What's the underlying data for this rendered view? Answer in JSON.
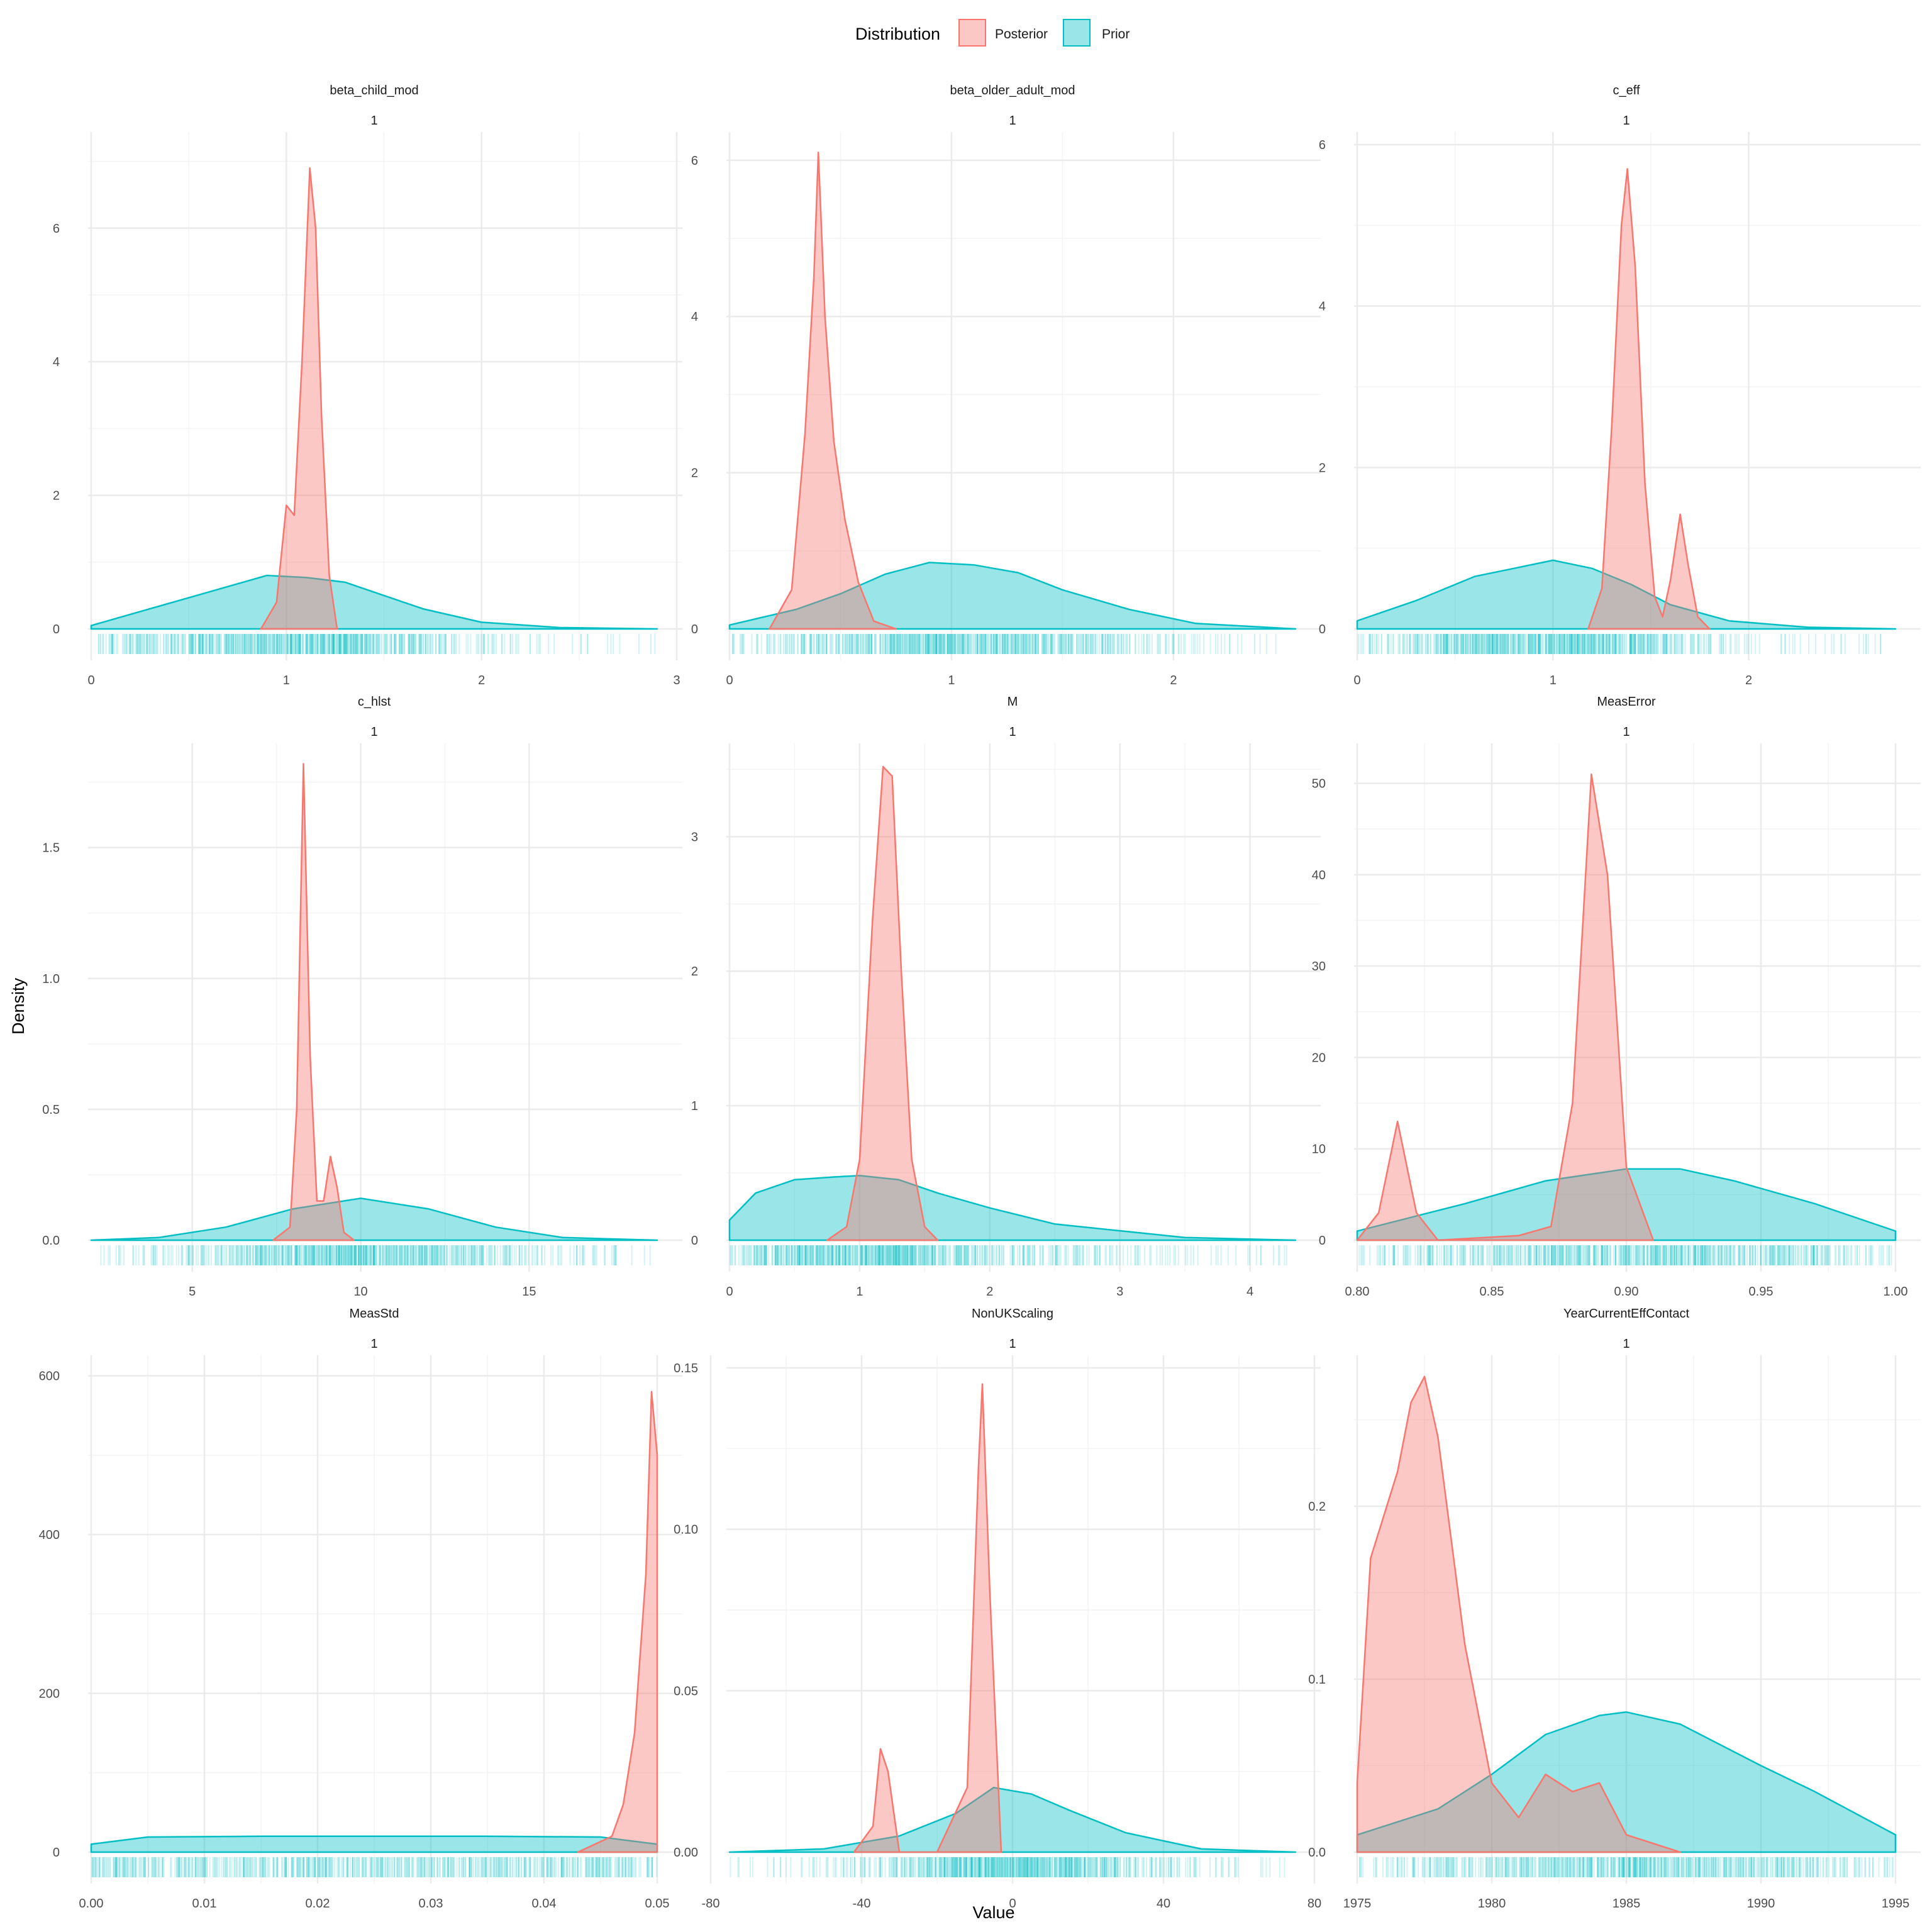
{
  "legend": {
    "title": "Distribution",
    "items": [
      {
        "label": "Posterior",
        "fill": "#F8766D",
        "stroke": "#F8766D"
      },
      {
        "label": "Prior",
        "fill": "#00BFC4",
        "stroke": "#00BFC4"
      }
    ]
  },
  "axis_titles": {
    "x": "Value",
    "y": "Density"
  },
  "colors": {
    "posterior": "#F8766D",
    "prior": "#00BFC4",
    "grid_major": "#ebebeb",
    "grid_minor": "#f4f4f4",
    "text": "#4d4d4d"
  },
  "chart_data": [
    {
      "type": "area",
      "title": "beta_child_mod",
      "subtitle": "1",
      "xlim": [
        0,
        2.9
      ],
      "ylim": [
        0,
        7.25
      ],
      "xticks": [
        0,
        1,
        2,
        3
      ],
      "yticks": [
        0,
        2,
        4,
        6
      ],
      "xtick_labels": [
        "0",
        "1",
        "2",
        "3"
      ],
      "ytick_labels": [
        "0",
        "2",
        "4",
        "6"
      ],
      "series": [
        {
          "name": "Prior",
          "x": [
            0,
            0.3,
            0.6,
            0.9,
            1.1,
            1.3,
            1.5,
            1.7,
            2.0,
            2.4,
            2.9
          ],
          "y": [
            0.05,
            0.3,
            0.55,
            0.8,
            0.77,
            0.7,
            0.5,
            0.3,
            0.1,
            0.02,
            0
          ]
        },
        {
          "name": "Posterior",
          "x": [
            0.87,
            0.95,
            1.0,
            1.04,
            1.08,
            1.12,
            1.15,
            1.18,
            1.22,
            1.26
          ],
          "y": [
            0,
            0.4,
            1.85,
            1.7,
            4.0,
            6.9,
            6.0,
            3.2,
            0.8,
            0
          ]
        }
      ]
    },
    {
      "type": "area",
      "title": "beta_older_adult_mod",
      "subtitle": "1",
      "xlim": [
        0,
        2.55
      ],
      "ylim": [
        0,
        6.2
      ],
      "xticks": [
        0,
        1,
        2
      ],
      "yticks": [
        0,
        2,
        4,
        6
      ],
      "xtick_labels": [
        "0",
        "1",
        "2"
      ],
      "ytick_labels": [
        "0",
        "2",
        "4",
        "6"
      ],
      "series": [
        {
          "name": "Prior",
          "x": [
            0,
            0.3,
            0.5,
            0.7,
            0.9,
            1.1,
            1.3,
            1.5,
            1.8,
            2.1,
            2.55
          ],
          "y": [
            0.05,
            0.25,
            0.45,
            0.7,
            0.85,
            0.82,
            0.72,
            0.5,
            0.25,
            0.07,
            0
          ]
        },
        {
          "name": "Posterior",
          "x": [
            0.18,
            0.28,
            0.34,
            0.38,
            0.4,
            0.43,
            0.47,
            0.52,
            0.58,
            0.65,
            0.75
          ],
          "y": [
            0,
            0.5,
            2.5,
            4.5,
            6.1,
            4.0,
            2.4,
            1.4,
            0.6,
            0.1,
            0
          ]
        }
      ]
    },
    {
      "type": "area",
      "title": "c_eff",
      "subtitle": "1",
      "xlim": [
        0,
        2.75
      ],
      "ylim": [
        0,
        6
      ],
      "xticks": [
        0,
        1,
        2
      ],
      "yticks": [
        0,
        2,
        4,
        6
      ],
      "xtick_labels": [
        "0",
        "1",
        "2"
      ],
      "ytick_labels": [
        "0",
        "2",
        "4",
        "6"
      ],
      "series": [
        {
          "name": "Prior",
          "x": [
            0,
            0.3,
            0.6,
            0.8,
            1.0,
            1.2,
            1.4,
            1.6,
            1.9,
            2.3,
            2.75
          ],
          "y": [
            0.1,
            0.35,
            0.65,
            0.75,
            0.85,
            0.75,
            0.55,
            0.3,
            0.1,
            0.02,
            0
          ]
        },
        {
          "name": "Posterior",
          "x": [
            1.18,
            1.25,
            1.3,
            1.35,
            1.38,
            1.42,
            1.47,
            1.52,
            1.56,
            1.6,
            1.65,
            1.69,
            1.74,
            1.8
          ],
          "y": [
            0,
            0.5,
            2.5,
            5.0,
            5.7,
            4.5,
            1.8,
            0.4,
            0.15,
            0.6,
            1.42,
            0.8,
            0.15,
            0
          ]
        }
      ]
    },
    {
      "type": "area",
      "title": "c_hlst",
      "subtitle": "1",
      "xlim": [
        2,
        18.8
      ],
      "ylim": [
        0,
        1.85
      ],
      "xticks": [
        5,
        10,
        15
      ],
      "yticks": [
        0,
        0.5,
        1,
        1.5
      ],
      "xtick_labels": [
        "5",
        "10",
        "15"
      ],
      "ytick_labels": [
        "0.0",
        "0.5",
        "1.0",
        "1.5"
      ],
      "series": [
        {
          "name": "Prior",
          "x": [
            2,
            4,
            6,
            8,
            10,
            12,
            14,
            16,
            18.8
          ],
          "y": [
            0,
            0.01,
            0.05,
            0.12,
            0.16,
            0.12,
            0.05,
            0.01,
            0
          ]
        },
        {
          "name": "Posterior",
          "x": [
            7.4,
            7.9,
            8.1,
            8.3,
            8.5,
            8.7,
            8.9,
            9.1,
            9.3,
            9.5,
            9.8
          ],
          "y": [
            0,
            0.05,
            0.5,
            1.82,
            0.7,
            0.15,
            0.15,
            0.32,
            0.2,
            0.03,
            0
          ]
        }
      ]
    },
    {
      "type": "area",
      "title": "M",
      "subtitle": "1",
      "xlim": [
        0,
        4.35
      ],
      "ylim": [
        0,
        3.6
      ],
      "xticks": [
        0,
        1,
        2,
        3,
        4
      ],
      "yticks": [
        0,
        1,
        2,
        3
      ],
      "xtick_labels": [
        "0",
        "1",
        "2",
        "3",
        "4"
      ],
      "ytick_labels": [
        "0",
        "1",
        "2",
        "3"
      ],
      "series": [
        {
          "name": "Prior",
          "x": [
            0,
            0.2,
            0.5,
            0.8,
            1.0,
            1.3,
            1.6,
            2.0,
            2.5,
            3.0,
            3.5,
            4.35
          ],
          "y": [
            0.15,
            0.35,
            0.45,
            0.47,
            0.48,
            0.45,
            0.35,
            0.24,
            0.12,
            0.07,
            0.02,
            0
          ]
        },
        {
          "name": "Posterior",
          "x": [
            0.75,
            0.9,
            1.0,
            1.1,
            1.18,
            1.25,
            1.32,
            1.4,
            1.5,
            1.6
          ],
          "y": [
            0,
            0.1,
            0.6,
            2.4,
            3.52,
            3.45,
            2.0,
            0.6,
            0.1,
            0
          ]
        }
      ]
    },
    {
      "type": "area",
      "title": "MeasError",
      "subtitle": "1",
      "xlim": [
        0.8,
        1.0
      ],
      "ylim": [
        0,
        53
      ],
      "xticks": [
        0.8,
        0.85,
        0.9,
        0.95,
        1.0
      ],
      "yticks": [
        0,
        10,
        20,
        30,
        40,
        50
      ],
      "xtick_labels": [
        "0.80",
        "0.85",
        "0.90",
        "0.95",
        "1.00"
      ],
      "ytick_labels": [
        "0",
        "10",
        "20",
        "30",
        "40",
        "50"
      ],
      "series": [
        {
          "name": "Prior",
          "x": [
            0.8,
            0.84,
            0.87,
            0.9,
            0.92,
            0.94,
            0.97,
            1.0
          ],
          "y": [
            1,
            4,
            6.5,
            7.8,
            7.8,
            6.5,
            4,
            1
          ]
        },
        {
          "name": "Posterior",
          "x": [
            0.8,
            0.808,
            0.815,
            0.822,
            0.83,
            0.86,
            0.872,
            0.88,
            0.887,
            0.893,
            0.9,
            0.91
          ],
          "y": [
            0,
            3,
            13,
            3,
            0,
            0.5,
            1.5,
            15,
            51,
            40,
            8,
            0
          ]
        }
      ]
    },
    {
      "type": "area",
      "title": "MeasStd",
      "subtitle": "1",
      "xlim": [
        0,
        0.05
      ],
      "ylim": [
        0,
        610
      ],
      "xticks": [
        0,
        0.01,
        0.02,
        0.03,
        0.04,
        0.05
      ],
      "yticks": [
        0,
        200,
        400,
        600
      ],
      "xtick_labels": [
        "0.00",
        "0.01",
        "0.02",
        "0.03",
        "0.04",
        "0.05"
      ],
      "ytick_labels": [
        "0",
        "200",
        "400",
        "600"
      ],
      "series": [
        {
          "name": "Prior",
          "x": [
            0,
            0.005,
            0.015,
            0.025,
            0.035,
            0.045,
            0.05
          ],
          "y": [
            10,
            19,
            20,
            20,
            20,
            19,
            10
          ]
        },
        {
          "name": "Posterior",
          "x": [
            0.043,
            0.046,
            0.047,
            0.048,
            0.049,
            0.0495,
            0.05
          ],
          "y": [
            0,
            20,
            60,
            150,
            350,
            580,
            500
          ]
        }
      ]
    },
    {
      "type": "area",
      "title": "NonUKScaling",
      "subtitle": "1",
      "xlim": [
        -75,
        75
      ],
      "ylim": [
        0,
        0.15
      ],
      "xticks": [
        -80,
        -40,
        0,
        40,
        80
      ],
      "yticks": [
        0,
        0.05,
        0.1,
        0.15
      ],
      "xtick_labels": [
        "-80",
        "-40",
        "0",
        "40",
        "80"
      ],
      "ytick_labels": [
        "0.00",
        "0.05",
        "0.10",
        "0.15"
      ],
      "series": [
        {
          "name": "Prior",
          "x": [
            -75,
            -50,
            -30,
            -15,
            -5,
            5,
            15,
            30,
            50,
            75
          ],
          "y": [
            0,
            0.001,
            0.005,
            0.012,
            0.02,
            0.018,
            0.013,
            0.006,
            0.001,
            0
          ]
        },
        {
          "name": "Posterior",
          "x": [
            -42,
            -37,
            -35,
            -33,
            -30,
            -20,
            -12,
            -9,
            -8,
            -6,
            -3
          ],
          "y": [
            0,
            0.008,
            0.032,
            0.025,
            0,
            0,
            0.02,
            0.12,
            0.145,
            0.08,
            0
          ]
        }
      ]
    },
    {
      "type": "area",
      "title": "YearCurrentEffContact",
      "subtitle": "1",
      "xlim": [
        1975,
        1995
      ],
      "ylim": [
        0,
        0.28
      ],
      "xticks": [
        1975,
        1980,
        1985,
        1990,
        1995
      ],
      "yticks": [
        0,
        0.1,
        0.2
      ],
      "xtick_labels": [
        "1975",
        "1980",
        "1985",
        "1990",
        "1995"
      ],
      "ytick_labels": [
        "0.0",
        "0.1",
        "0.2"
      ],
      "series": [
        {
          "name": "Prior",
          "x": [
            1975,
            1978,
            1980,
            1982,
            1984,
            1985,
            1987,
            1990,
            1992,
            1995
          ],
          "y": [
            0.01,
            0.025,
            0.045,
            0.068,
            0.079,
            0.081,
            0.074,
            0.05,
            0.035,
            0.01
          ]
        },
        {
          "name": "Posterior",
          "x": [
            1975,
            1975.5,
            1976.5,
            1977,
            1977.5,
            1978,
            1979,
            1980,
            1981,
            1982,
            1983,
            1984,
            1985,
            1987
          ],
          "y": [
            0.04,
            0.17,
            0.22,
            0.26,
            0.275,
            0.24,
            0.12,
            0.04,
            0.02,
            0.045,
            0.035,
            0.04,
            0.01,
            0
          ]
        }
      ]
    }
  ]
}
